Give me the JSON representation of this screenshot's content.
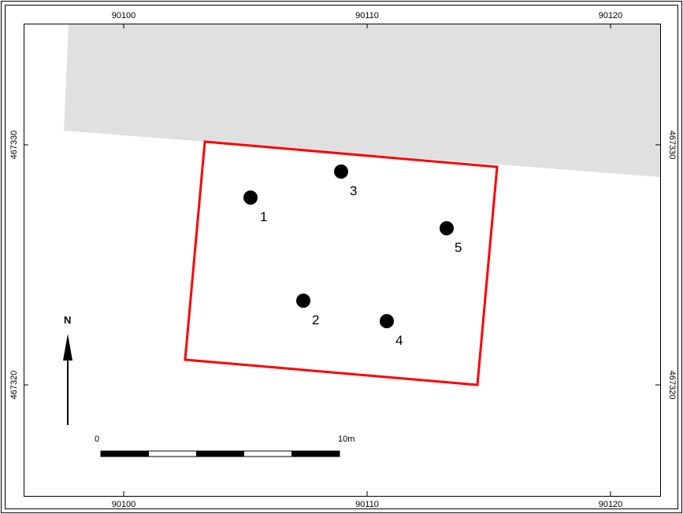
{
  "map": {
    "x_ticks": [
      {
        "value": 90100,
        "label": "90100"
      },
      {
        "value": 90110,
        "label": "90110"
      },
      {
        "value": 90120,
        "label": "90120"
      }
    ],
    "y_ticks": [
      {
        "value": 467330,
        "label": "467330"
      },
      {
        "value": 467320,
        "label": "467320"
      }
    ],
    "building_color": "#e0e0e0",
    "boundary_color": "#ff0000",
    "points": [
      {
        "label": "1"
      },
      {
        "label": "2"
      },
      {
        "label": "3"
      },
      {
        "label": "4"
      },
      {
        "label": "5"
      }
    ],
    "north_arrow": {
      "label": "N"
    },
    "scale_bar": {
      "start_label": "0",
      "end_label": "10m"
    }
  }
}
